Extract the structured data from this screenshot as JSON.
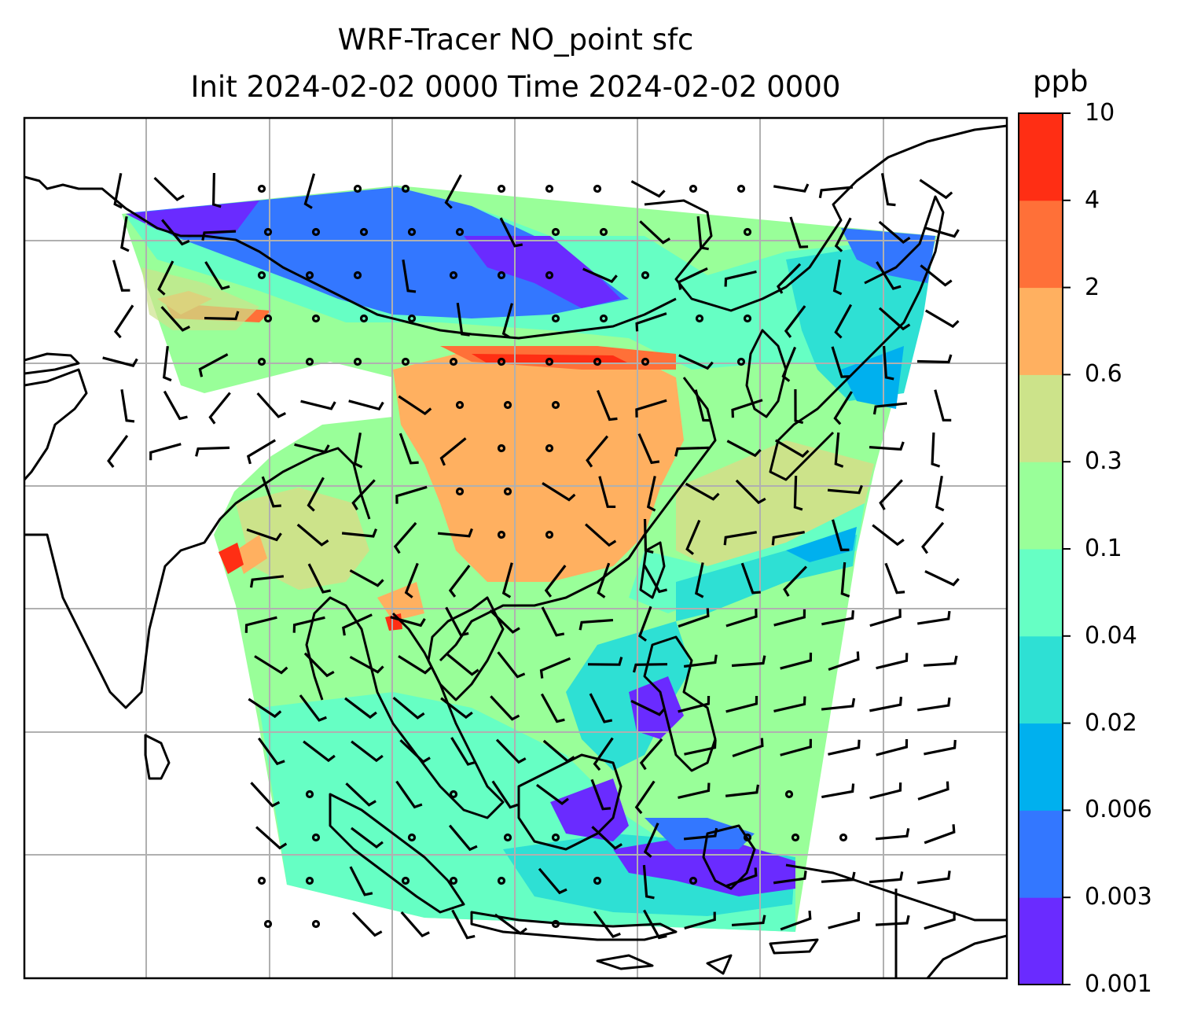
{
  "title": {
    "line1": "WRF-Tracer NO_point sfc",
    "line2": "Init 2024-02-02 0000 Time 2024-02-02 0000"
  },
  "colorbar": {
    "unit": "ppb",
    "levels": [
      "0.001",
      "0.003",
      "0.006",
      "0.02",
      "0.04",
      "0.1",
      "0.3",
      "0.6",
      "2",
      "4",
      "10"
    ],
    "colors": [
      "#6a2bff",
      "#3377ff",
      "#00b0ee",
      "#2ee0d4",
      "#66ffc4",
      "#99ff99",
      "#cce38a",
      "#ffb060",
      "#ff7038",
      "#ff2e14"
    ]
  },
  "map": {
    "projection": "Lambert conformal",
    "region": "East and Southeast Asia",
    "gridlines": true,
    "field": "NO_point tracer surface concentration",
    "overlay": "wind barbs",
    "coastline_color": "#000000",
    "gridline_color": "#b0b0b0"
  }
}
